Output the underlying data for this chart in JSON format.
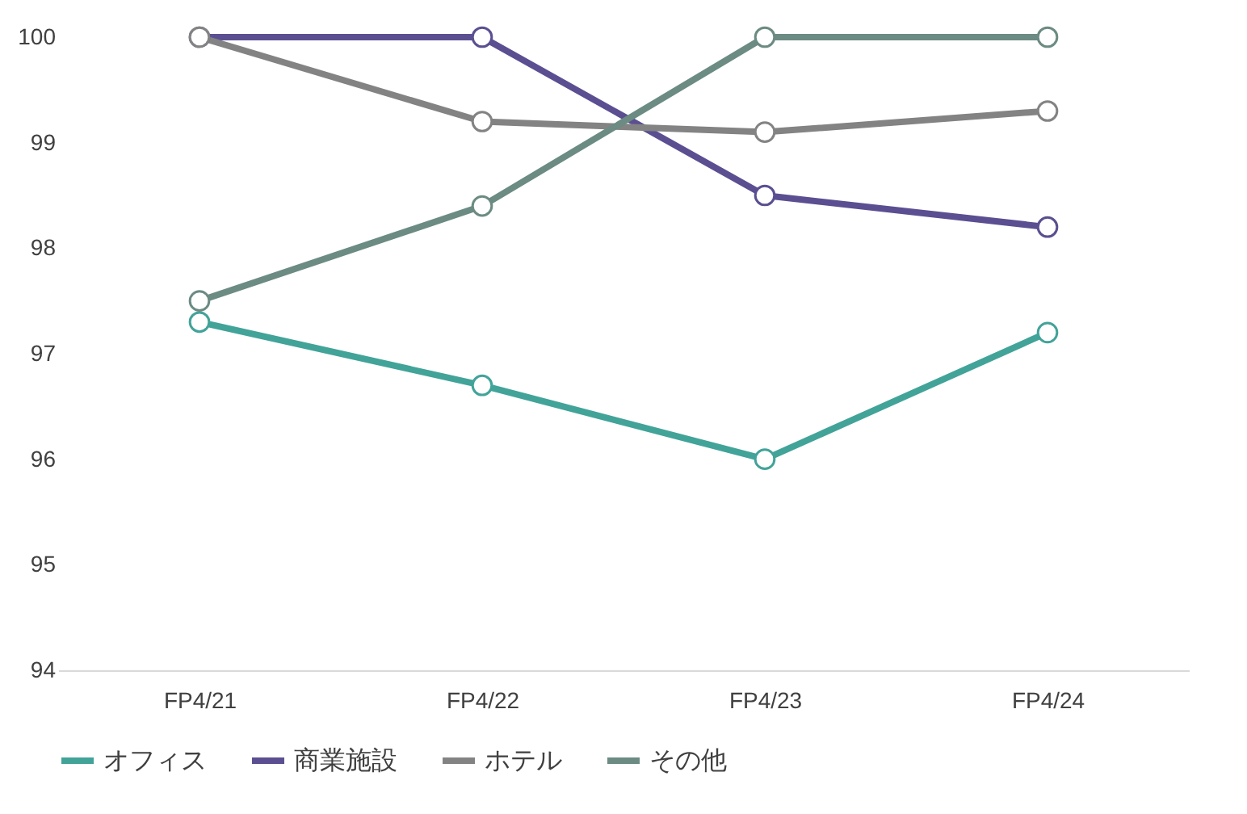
{
  "chart_data": {
    "type": "line",
    "categories": [
      "FP4/21",
      "FP4/22",
      "FP4/23",
      "FP4/24"
    ],
    "series": [
      {
        "name": "オフィス",
        "color": "#42a399",
        "values": [
          97.3,
          96.7,
          96.0,
          97.2
        ]
      },
      {
        "name": "商業施設",
        "color": "#5b4f91",
        "values": [
          100,
          100,
          98.5,
          98.2
        ]
      },
      {
        "name": "ホテル",
        "color": "#838383",
        "values": [
          100,
          99.2,
          99.1,
          99.3
        ]
      },
      {
        "name": "その他",
        "color": "#6b8b83",
        "values": [
          97.5,
          98.4,
          100,
          100
        ]
      }
    ],
    "ylim": [
      94,
      100
    ],
    "yticks": [
      94,
      95,
      96,
      97,
      98,
      99,
      100
    ],
    "grid": false,
    "legend": "bottom",
    "marker": "circle",
    "line_style": "solid"
  }
}
